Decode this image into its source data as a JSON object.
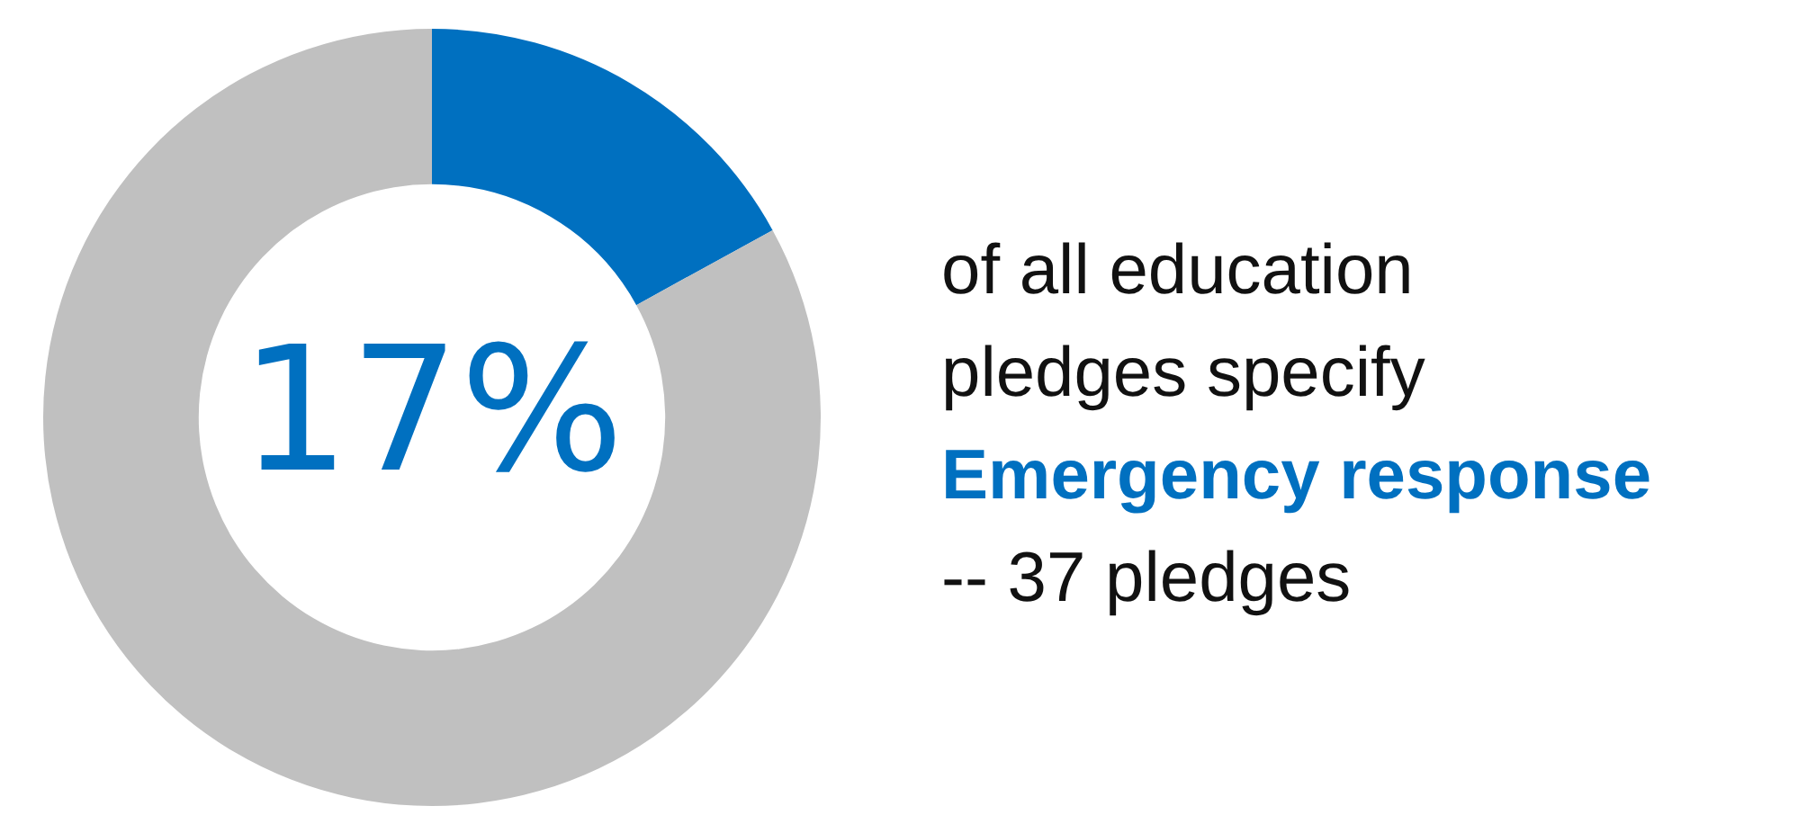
{
  "chart_data": {
    "type": "donut",
    "categories": [
      null,
      null
    ],
    "values": [
      17,
      83
    ],
    "colors": [
      "#0070c0",
      "#c0c0c0"
    ],
    "value_labels": [
      "17%",
      null
    ],
    "annotations": [
      "of all education",
      "pledges specify",
      "Emergency response",
      "-- 37 pledges"
    ]
  }
}
